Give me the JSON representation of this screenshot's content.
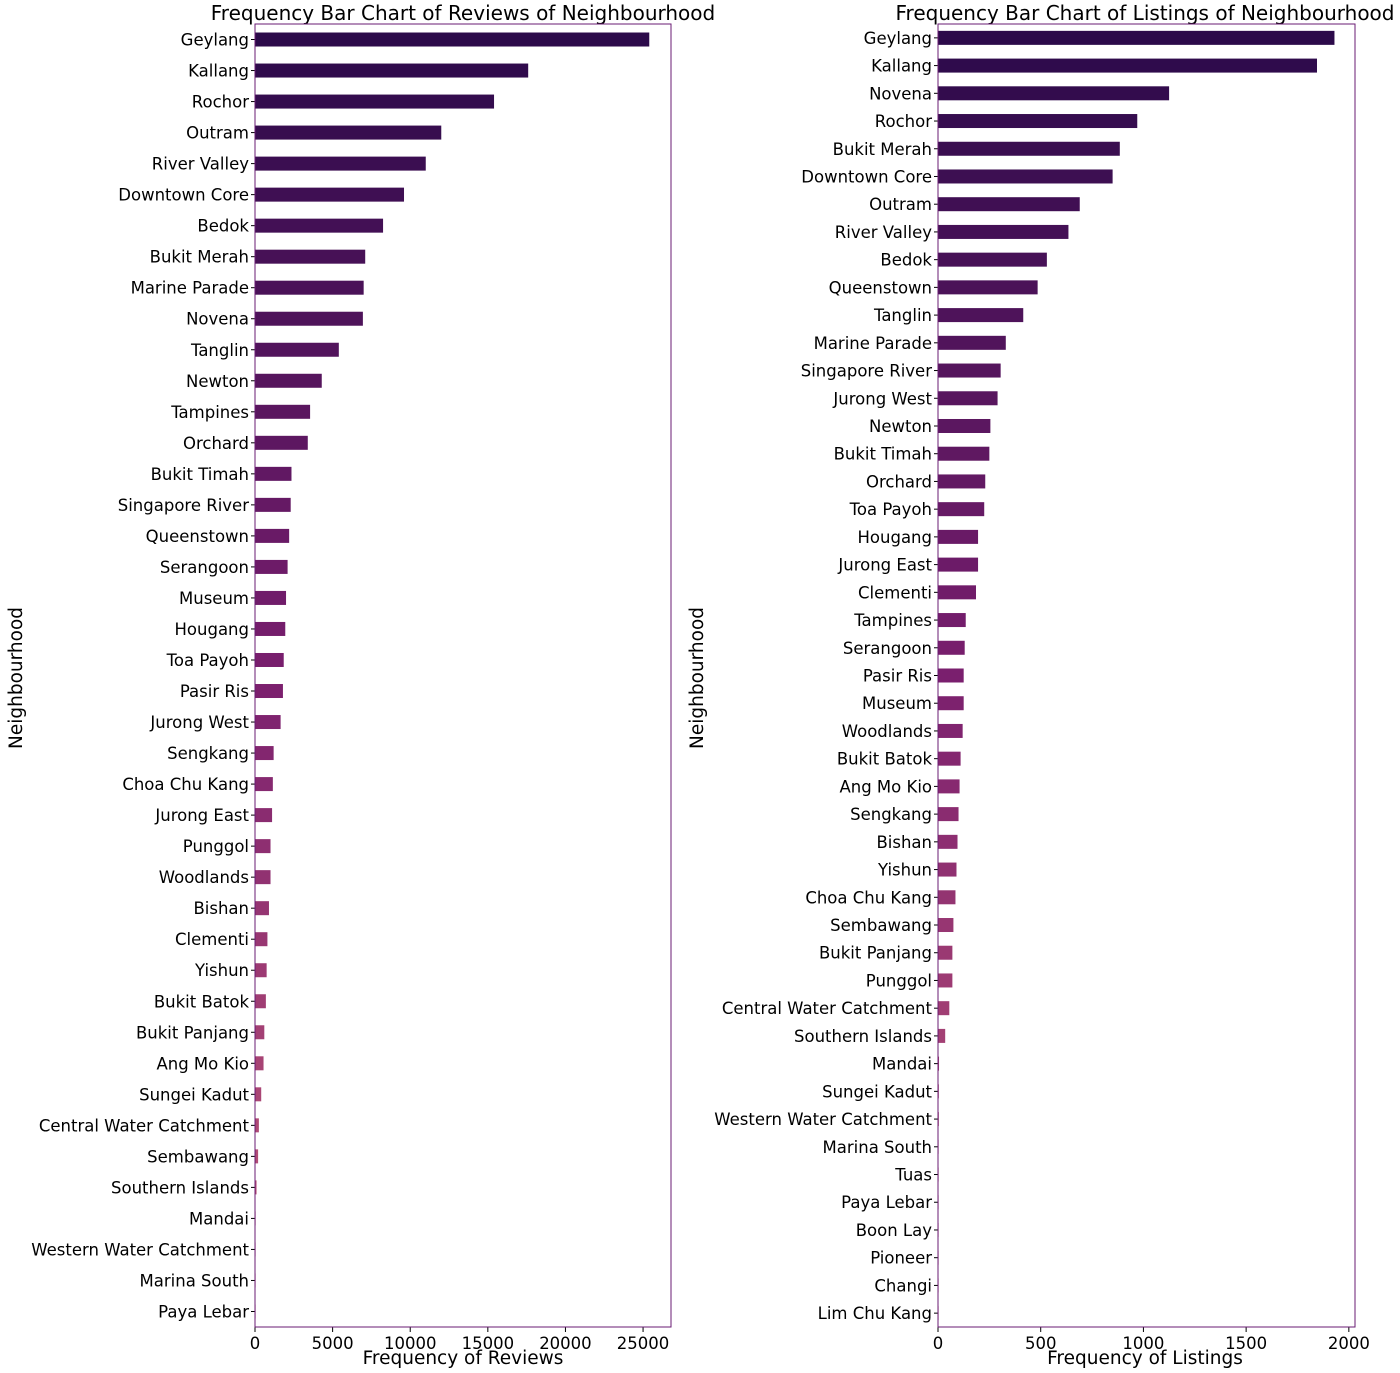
{
  "chart_data": [
    {
      "type": "bar",
      "orientation": "horizontal",
      "title": "Frequency Bar Chart of Reviews of Neighbourhood",
      "xlabel": "Frequency of Reviews",
      "ylabel": "Neighbourhood",
      "xlim": [
        0,
        26800
      ],
      "xticks": [
        0,
        5000,
        10000,
        15000,
        20000,
        25000
      ],
      "xtick_labels": [
        "0",
        "5000",
        "10000",
        "15000",
        "20000",
        "25000"
      ],
      "grid": false,
      "categories": [
        "Geylang",
        "Kallang",
        "Rochor",
        "Outram",
        "River Valley",
        "Downtown Core",
        "Bedok",
        "Bukit Merah",
        "Marine Parade",
        "Novena",
        "Tanglin",
        "Newton",
        "Tampines",
        "Orchard",
        "Bukit Timah",
        "Singapore River",
        "Queenstown",
        "Serangoon",
        "Museum",
        "Hougang",
        "Toa Payoh",
        "Pasir Ris",
        "Jurong West",
        "Sengkang",
        "Choa Chu Kang",
        "Jurong East",
        "Punggol",
        "Woodlands",
        "Bishan",
        "Clementi",
        "Yishun",
        "Bukit Batok",
        "Bukit Panjang",
        "Ang Mo Kio",
        "Sungei Kadut",
        "Central Water Catchment",
        "Sembawang",
        "Southern Islands",
        "Mandai",
        "Western Water Catchment",
        "Marina South",
        "Paya Lebar"
      ],
      "values": [
        25400,
        17600,
        15400,
        12000,
        11000,
        9600,
        8250,
        7100,
        7000,
        6950,
        5400,
        4300,
        3550,
        3400,
        2350,
        2300,
        2200,
        2100,
        2000,
        1950,
        1850,
        1800,
        1650,
        1200,
        1150,
        1100,
        1000,
        1000,
        900,
        800,
        750,
        700,
        600,
        550,
        400,
        250,
        200,
        100,
        40,
        30,
        20,
        10
      ]
    },
    {
      "type": "bar",
      "orientation": "horizontal",
      "title": "Frequency Bar Chart of Listings of Neighbourhood",
      "xlabel": "Frequency of Listings",
      "ylabel": "Neighbourhood",
      "xlim": [
        0,
        2030
      ],
      "xticks": [
        0,
        500,
        1000,
        1500,
        2000
      ],
      "xtick_labels": [
        "0",
        "500",
        "1000",
        "1500",
        "2000"
      ],
      "grid": false,
      "categories": [
        "Geylang",
        "Kallang",
        "Novena",
        "Rochor",
        "Bukit Merah",
        "Downtown Core",
        "Outram",
        "River Valley",
        "Bedok",
        "Queenstown",
        "Tanglin",
        "Marine Parade",
        "Singapore River",
        "Jurong West",
        "Newton",
        "Bukit Timah",
        "Orchard",
        "Toa Payoh",
        "Hougang",
        "Jurong East",
        "Clementi",
        "Tampines",
        "Serangoon",
        "Pasir Ris",
        "Museum",
        "Woodlands",
        "Bukit Batok",
        "Ang Mo Kio",
        "Sengkang",
        "Bishan",
        "Yishun",
        "Choa Chu Kang",
        "Sembawang",
        "Bukit Panjang",
        "Punggol",
        "Central Water Catchment",
        "Southern Islands",
        "Mandai",
        "Sungei Kadut",
        "Western Water Catchment",
        "Marina South",
        "Tuas",
        "Paya Lebar",
        "Boon Lay",
        "Pioneer",
        "Changi",
        "Lim Chu Kang"
      ],
      "values": [
        1930,
        1845,
        1125,
        970,
        885,
        850,
        690,
        635,
        530,
        485,
        415,
        330,
        305,
        290,
        255,
        250,
        230,
        225,
        195,
        195,
        185,
        135,
        130,
        125,
        125,
        120,
        110,
        105,
        100,
        95,
        90,
        85,
        75,
        70,
        70,
        55,
        35,
        5,
        4,
        4,
        3,
        3,
        2,
        2,
        1,
        1,
        1
      ]
    }
  ],
  "colors": {
    "bar_start": "#2c0a4a",
    "bar_mid": "#7a1f6e",
    "bar_end": "#c35a78",
    "axis_frame": "#6a1b73"
  }
}
